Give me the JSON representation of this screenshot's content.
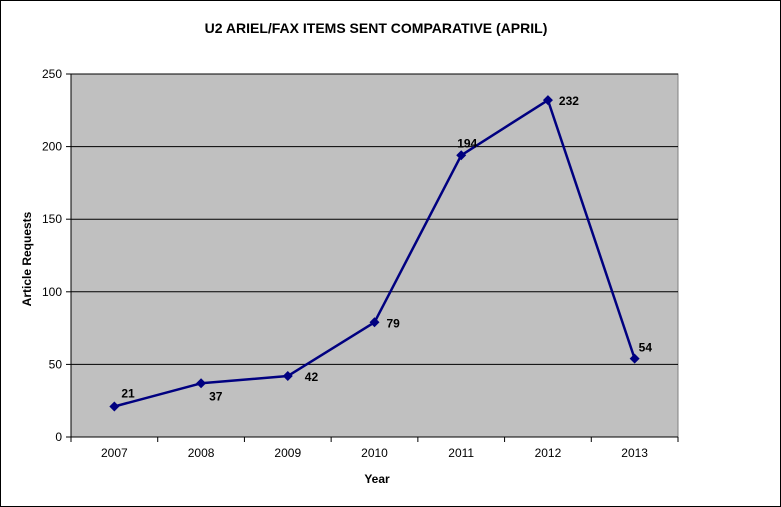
{
  "chart_data": {
    "type": "line",
    "title": "U2 ARIEL/FAX ITEMS SENT COMPARATIVE (APRIL)",
    "xlabel": "Year",
    "ylabel": "Article Requests",
    "categories": [
      "2007",
      "2008",
      "2009",
      "2010",
      "2011",
      "2012",
      "2013"
    ],
    "series": [
      {
        "values": [
          21,
          37,
          42,
          79,
          194,
          232,
          54
        ]
      }
    ],
    "ylim": [
      0,
      250
    ],
    "yticks": [
      0,
      50,
      100,
      150,
      200,
      250
    ],
    "grid": true,
    "legend": "none",
    "colors": {
      "plot_background": "#c0c0c0",
      "line": "#000080",
      "gridline": "#000000"
    }
  }
}
